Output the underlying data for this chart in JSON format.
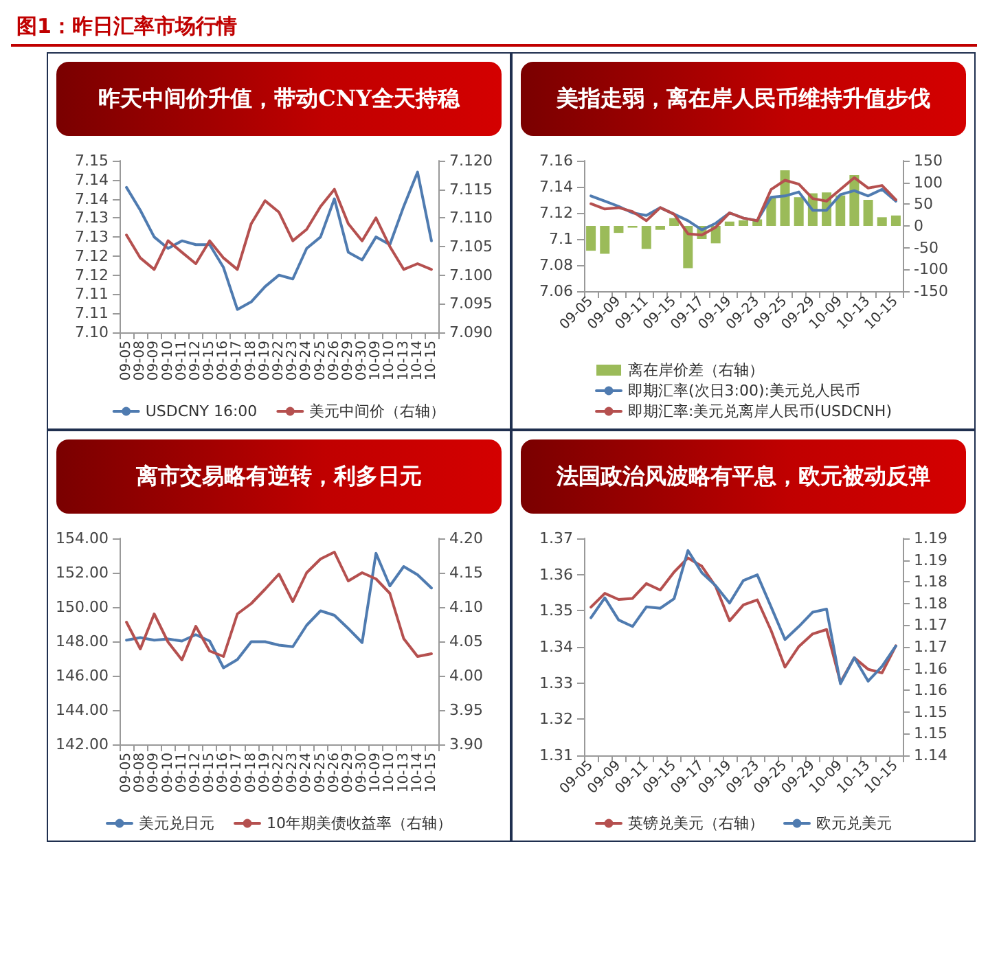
{
  "chart_data": [
    {
      "type": "line",
      "title": "昨天中间价升值，带动CNY全天持稳",
      "annotations": [
        "图1：昨日汇率市场行情"
      ],
      "categories": [
        "09-05",
        "09-08",
        "09-09",
        "09-10",
        "09-11",
        "09-12",
        "09-15",
        "09-16",
        "09-17",
        "09-18",
        "09-19",
        "09-22",
        "09-23",
        "09-24",
        "09-25",
        "09-26",
        "09-29",
        "09-30",
        "10-09",
        "10-10",
        "10-13",
        "10-14",
        "10-15"
      ],
      "series": [
        {
          "name": "USDCNY 16:00",
          "color": "#4f7bb0",
          "values": [
            7.138,
            7.132,
            7.125,
            7.122,
            7.124,
            7.123,
            7.123,
            7.117,
            7.106,
            7.108,
            7.112,
            7.115,
            7.114,
            7.122,
            7.125,
            7.135,
            7.121,
            7.119,
            7.125,
            7.123,
            7.133,
            7.142,
            7.124
          ]
        },
        {
          "name": "美元中间价（右轴）",
          "color": "#b5504f",
          "axis": "y2",
          "values": [
            7.107,
            7.103,
            7.101,
            7.106,
            7.104,
            7.102,
            7.106,
            7.103,
            7.101,
            7.109,
            7.113,
            7.111,
            7.106,
            7.108,
            7.112,
            7.115,
            7.109,
            7.106,
            7.11,
            7.105,
            7.101,
            7.102,
            7.101
          ]
        }
      ],
      "ylim": [
        7.1,
        7.145
      ],
      "yticks": [
        {
          "value": 7.1,
          "label": "7.10"
        },
        {
          "value": 7.105,
          "label": "7.11"
        },
        {
          "value": 7.11,
          "label": "7.11"
        },
        {
          "value": 7.115,
          "label": "7.12"
        },
        {
          "value": 7.12,
          "label": "7.12"
        },
        {
          "value": 7.125,
          "label": "7.13"
        },
        {
          "value": 7.13,
          "label": "7.13"
        },
        {
          "value": 7.135,
          "label": "7.14"
        },
        {
          "value": 7.14,
          "label": "7.14"
        },
        {
          "value": 7.145,
          "label": "7.15"
        }
      ],
      "y2lim": [
        7.09,
        7.12
      ],
      "y2ticks": [
        {
          "value": 7.09,
          "label": "7.090"
        },
        {
          "value": 7.095,
          "label": "7.095"
        },
        {
          "value": 7.1,
          "label": "7.100"
        },
        {
          "value": 7.105,
          "label": "7.105"
        },
        {
          "value": 7.11,
          "label": "7.110"
        },
        {
          "value": 7.115,
          "label": "7.115"
        },
        {
          "value": 7.12,
          "label": "7.120"
        }
      ],
      "legend": "bottom"
    },
    {
      "type": "line",
      "title": "美指走弱，离在岸人民币维持升值步伐",
      "categories": [
        "09-05",
        null,
        "09-09",
        null,
        "09-11",
        null,
        "09-15",
        null,
        "09-17",
        null,
        "09-19",
        null,
        "09-23",
        null,
        "09-25",
        null,
        "09-29",
        null,
        "10-09",
        null,
        "10-13",
        null,
        "10-15"
      ],
      "series": [
        {
          "name": "离在岸价差（右轴）",
          "type": "bar",
          "color": "#9bbb59",
          "axis": "y2",
          "values": [
            -57,
            -64,
            -16,
            -4,
            -53,
            -9,
            18,
            -97,
            -30,
            -40,
            10,
            13,
            15,
            66,
            128,
            66,
            75,
            77,
            70,
            117,
            60,
            20,
            24
          ]
        },
        {
          "name": "即期汇率(次日3:00):美元兑人民币",
          "color": "#4f7bb0",
          "values": [
            7.133,
            7.129,
            7.125,
            7.12,
            7.118,
            7.124,
            7.119,
            7.114,
            7.107,
            7.112,
            7.12,
            7.116,
            7.114,
            7.132,
            7.133,
            7.136,
            7.122,
            7.122,
            7.134,
            7.137,
            7.133,
            7.138,
            7.129
          ]
        },
        {
          "name": "即期汇率:美元兑离岸人民币(USDCNH)",
          "color": "#b5504f",
          "values": [
            7.127,
            7.123,
            7.124,
            7.121,
            7.114,
            7.124,
            7.119,
            7.104,
            7.103,
            7.109,
            7.12,
            7.116,
            7.114,
            7.138,
            7.145,
            7.142,
            7.131,
            7.129,
            7.138,
            7.147,
            7.139,
            7.141,
            7.13
          ]
        }
      ],
      "ylim": [
        7.06,
        7.16
      ],
      "yticks": [
        7.06,
        7.08,
        7.1,
        7.12,
        7.14,
        7.16
      ],
      "y2lim": [
        -150,
        150
      ],
      "y2ticks": [
        -150,
        -100,
        -50,
        0,
        50,
        100,
        150
      ],
      "legend": "bottom"
    },
    {
      "type": "line",
      "title": "离市交易略有逆转，利多日元",
      "categories": [
        "09-05",
        "09-08",
        "09-09",
        "09-10",
        "09-11",
        "09-12",
        "09-15",
        "09-16",
        "09-17",
        "09-18",
        "09-19",
        "09-22",
        "09-23",
        "09-24",
        "09-25",
        "09-26",
        "09-29",
        "09-30",
        "10-09",
        "10-10",
        "10-13",
        "10-14",
        "10-15"
      ],
      "series": [
        {
          "name": "美元兑日元",
          "color": "#4f7bb0",
          "values": [
            148.07,
            148.22,
            148.07,
            148.14,
            148.02,
            148.39,
            148.02,
            146.46,
            146.94,
            147.98,
            147.98,
            147.78,
            147.69,
            148.94,
            149.78,
            149.52,
            148.75,
            147.93,
            153.13,
            151.23,
            152.36,
            151.88,
            151.11
          ]
        },
        {
          "name": "10年期美债收益率（右轴）",
          "color": "#b5504f",
          "axis": "y2",
          "values": [
            4.078,
            4.039,
            4.09,
            4.049,
            4.023,
            4.072,
            4.036,
            4.028,
            4.09,
            4.105,
            4.126,
            4.148,
            4.108,
            4.15,
            4.17,
            4.18,
            4.138,
            4.15,
            4.141,
            4.12,
            4.054,
            4.028,
            4.032
          ]
        }
      ],
      "ylim": [
        142,
        154
      ],
      "yticks": [
        {
          "value": 142,
          "label": "142.00"
        },
        {
          "value": 144,
          "label": "144.00"
        },
        {
          "value": 146,
          "label": "146.00"
        },
        {
          "value": 148,
          "label": "148.00"
        },
        {
          "value": 150,
          "label": "150.00"
        },
        {
          "value": 152,
          "label": "152.00"
        },
        {
          "value": 154,
          "label": "154.00"
        }
      ],
      "y2lim": [
        3.9,
        4.2
      ],
      "y2ticks": [
        {
          "value": 3.9,
          "label": "3.90"
        },
        {
          "value": 3.95,
          "label": "3.95"
        },
        {
          "value": 4,
          "label": "4.00"
        },
        {
          "value": 4.05,
          "label": "4.05"
        },
        {
          "value": 4.1,
          "label": "4.10"
        },
        {
          "value": 4.15,
          "label": "4.15"
        },
        {
          "value": 4.2,
          "label": "4.20"
        }
      ],
      "legend": "bottom"
    },
    {
      "type": "line",
      "title": "法国政治风波略有平息，欧元被动反弹",
      "categories": [
        "09-05",
        null,
        "09-09",
        null,
        "09-11",
        null,
        "09-15",
        null,
        "09-17",
        null,
        "09-19",
        null,
        "09-23",
        null,
        "09-25",
        null,
        "09-29",
        null,
        "10-09",
        null,
        "10-13",
        null,
        "10-15"
      ],
      "series": [
        {
          "name": "英镑兑美元（右轴）",
          "color": "#b5504f",
          "values": [
            1.351,
            1.3548,
            1.3531,
            1.3534,
            1.3575,
            1.3557,
            1.3607,
            1.3646,
            1.3623,
            1.3567,
            1.3472,
            1.3516,
            1.353,
            1.3445,
            1.3344,
            1.3401,
            1.3436,
            1.3448,
            1.3302,
            1.337,
            1.3338,
            1.3328,
            1.3403
          ]
        },
        {
          "name": "欧元兑美元",
          "color": "#4f7bb0",
          "axis": "y2",
          "values": [
            1.1717,
            1.1763,
            1.1712,
            1.1697,
            1.1742,
            1.1739,
            1.1761,
            1.1872,
            1.1821,
            1.1791,
            1.1751,
            1.1803,
            1.1816,
            1.1742,
            1.1667,
            1.1697,
            1.173,
            1.1737,
            1.1565,
            1.1625,
            1.1571,
            1.1605,
            1.1652
          ]
        }
      ],
      "ylim": [
        1.31,
        1.37
      ],
      "yticks": [
        1.31,
        1.32,
        1.33,
        1.34,
        1.35,
        1.36,
        1.37
      ],
      "y2lim": [
        1.14,
        1.19
      ],
      "y2ticks": [
        {
          "value": 1.14,
          "label": "1.14"
        },
        {
          "value": 1.145,
          "label": "1.15"
        },
        {
          "value": 1.15,
          "label": "1.15"
        },
        {
          "value": 1.155,
          "label": "1.16"
        },
        {
          "value": 1.16,
          "label": "1.16"
        },
        {
          "value": 1.165,
          "label": "1.17"
        },
        {
          "value": 1.17,
          "label": "1.17"
        },
        {
          "value": 1.175,
          "label": "1.18"
        },
        {
          "value": 1.18,
          "label": "1.18"
        },
        {
          "value": 1.185,
          "label": "1.19"
        },
        {
          "value": 1.19,
          "label": "1.19"
        }
      ],
      "legend": "bottom"
    }
  ]
}
